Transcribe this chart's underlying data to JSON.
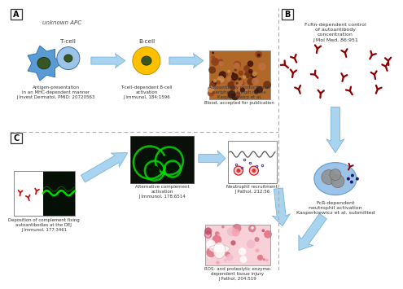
{
  "bg_color": "#ffffff",
  "panel_A_label": "A",
  "panel_B_label": "B",
  "panel_C_label": "C",
  "unknown_apc_text": "unknown APC",
  "tcell_label": "T-cell",
  "bcell_label": "B-cell",
  "antigen_text": "Antigen-presentation\nin an MHC-dependent manner\nJ Invest Dermatol, PMID: 20720563",
  "tcell_bcell_text": "T-cell–dependent B-cell\nactivation\nJ Immunol, 184:1596",
  "autoantibody_text": "Autoantibody production in\nperipheral lymph nodes\nKasperkiewicz et al,\nBlood, accepted for publication",
  "fcrn_text": "FcRn-dependent control\nof autoantibody\nconcentration\nJ Mol Med, 86:951",
  "fcr_text": "FcR-dependent\nneutrophil activation\nKasperkiewicz et al, submitted",
  "complement_text": "Deposition of complement fixing\nautoantibodies at the DEJ\nJ Immunol, 177:3461",
  "alt_complement_text": "Alternative complement\nactivation\nJ Immunol, 178:6514",
  "neutrophil_text": "Neutrophil recruitment\nJ Pathol, 212:56",
  "ros_text": "ROS- and proteolytic enzyme-\ndependent tissue injury\nJ Pathol, 204:519",
  "arrow_color": "#a8d4f0",
  "dashed_color": "#aaaaaa",
  "antibody_color": "#8b0000",
  "apc_color": "#5b9bd5",
  "apc_edge": "#2e75b6",
  "apc_nucleus": "#375623",
  "tcell_color": "#9dc3e6",
  "tcell_edge": "#2e75b6",
  "tcell_nucleus": "#375623",
  "bcell_color": "#ffc000",
  "bcell_edge": "#c09000",
  "bcell_nucleus": "#375623",
  "green_fluor": "#00cc00",
  "dark_bg": "#0a0f0a",
  "tissue_pink": "#f4a7b9",
  "tissue_pink2": "#e8748a",
  "lymph_bg": "#c87941",
  "neutrophil_blue": "#9dc3e6"
}
